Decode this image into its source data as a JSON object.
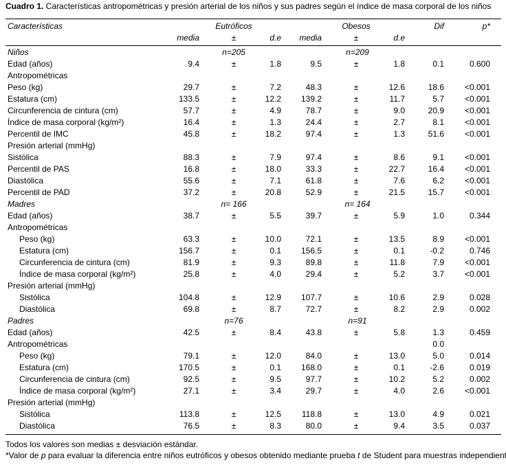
{
  "caption": {
    "label": "Cuadro 1.",
    "text": " Características antropométricas y presión arterial de los niños y sus padres según el índice de masa corporal de los niños"
  },
  "headers": {
    "caracteristicas": "Características",
    "eutroficos": "Eutróficos",
    "obesos": "Obesos",
    "dif": "Dif",
    "p": "p*",
    "media": "media",
    "pm": "±",
    "de": "d.e"
  },
  "rows": [
    {
      "label": "Niños",
      "kind": "group",
      "n1": "n=205",
      "n2": "n=209"
    },
    {
      "label": "Edad (años)",
      "m1": "9.4",
      "pm": "±",
      "sd1": "1.8",
      "m2": "9.5",
      "sd2": "1.8",
      "dif": "0.1",
      "p": "0.600"
    },
    {
      "label": "Antropométricas",
      "kind": "section"
    },
    {
      "label": "Peso (kg)",
      "m1": "29.7",
      "pm": "±",
      "sd1": "7.2",
      "m2": "48.3",
      "sd2": "12.6",
      "dif": "18.6",
      "p": "<0.001"
    },
    {
      "label": "Estatura (cm)",
      "m1": "133.5",
      "pm": "±",
      "sd1": "12.2",
      "m2": "139.2",
      "sd2": "11.7",
      "dif": "5.7",
      "p": "<0.001"
    },
    {
      "label": "Circunferencia de cintura (cm)",
      "m1": "57.7",
      "pm": "±",
      "sd1": "4.9",
      "m2": "78.7",
      "sd2": "9.0",
      "dif": "20.9",
      "p": "<0.001"
    },
    {
      "label": "Índice de masa corporal (kg/m²)",
      "m1": "16.4",
      "pm": "±",
      "sd1": "1.3",
      "m2": "24.4",
      "sd2": "2.7",
      "dif": "8.1",
      "p": "<0.001"
    },
    {
      "label": "Percentil de IMC",
      "m1": "45.8",
      "pm": "±",
      "sd1": "18.2",
      "m2": "97.4",
      "sd2": "1.3",
      "dif": "51.6",
      "p": "<0.001"
    },
    {
      "label": "Presión arterial (mmHg)",
      "kind": "section"
    },
    {
      "label": "Sistólica",
      "m1": "88.3",
      "pm": "±",
      "sd1": "7.9",
      "m2": "97.4",
      "sd2": "8.6",
      "dif": "9.1",
      "p": "<0.001"
    },
    {
      "label": "Percentil de PAS",
      "m1": "16.8",
      "pm": "±",
      "sd1": "18.0",
      "m2": "33.3",
      "sd2": "22.7",
      "dif": "16.4",
      "p": "<0.001"
    },
    {
      "label": "Diastólica",
      "m1": "55.6",
      "pm": "±",
      "sd1": "7.1",
      "m2": "61.8",
      "sd2": "7.6",
      "dif": "6.2",
      "p": "<0.001"
    },
    {
      "label": "Percentil de PAD",
      "m1": "37.2",
      "pm": "±",
      "sd1": "20.8",
      "m2": "52.9",
      "sd2": "21.5",
      "dif": "15.7",
      "p": "<0.001"
    },
    {
      "label": "Madres",
      "kind": "group",
      "n1": "n= 166",
      "n2": "n= 164"
    },
    {
      "label": "Edad (años)",
      "m1": "38.7",
      "pm": "±",
      "sd1": "5.5",
      "m2": "39.7",
      "sd2": "5.9",
      "dif": "1.0",
      "p": "0.344"
    },
    {
      "label": "Antropométricas",
      "kind": "section"
    },
    {
      "label": "Peso (kg)",
      "indent": true,
      "m1": "63.3",
      "pm": "±",
      "sd1": "10.0",
      "m2": "72.1",
      "sd2": "13.5",
      "dif": "8.9",
      "p": "<0.001"
    },
    {
      "label": "Estatura (cm)",
      "indent": true,
      "m1": "156.7",
      "pm": "±",
      "sd1": "0.1",
      "m2": "156.5",
      "sd2": "0.1",
      "dif": "-0.2",
      "p": "0.746"
    },
    {
      "label": "Circunferencia de cintura (cm)",
      "indent": true,
      "m1": "81.9",
      "pm": "±",
      "sd1": "9.3",
      "m2": "89.8",
      "sd2": "11.8",
      "dif": "7.9",
      "p": "<0.001"
    },
    {
      "label": "Índice de masa corporal (kg/m²)",
      "indent": true,
      "m1": "25.8",
      "pm": "±",
      "sd1": "4.0",
      "m2": "29.4",
      "sd2": "5.2",
      "dif": "3.7",
      "p": "<0.001"
    },
    {
      "label": "Presión arterial (mmHg)",
      "kind": "section"
    },
    {
      "label": "Sistólica",
      "indent": true,
      "m1": "104.8",
      "pm": "±",
      "sd1": "12.9",
      "m2": "107.7",
      "sd2": "10.6",
      "dif": "2.9",
      "p": "0.028"
    },
    {
      "label": "Diastólica",
      "indent": true,
      "m1": "69.8",
      "pm": "±",
      "sd1": "8.7",
      "m2": "72.7",
      "sd2": "8.2",
      "dif": "2.9",
      "p": "0.002"
    },
    {
      "label": "Padres",
      "kind": "group",
      "n1": "n=76",
      "n2": "n=91"
    },
    {
      "label": "Edad (años)",
      "m1": "42.5",
      "pm": "±",
      "sd1": "8.4",
      "m2": "43.8",
      "sd2": "5.8",
      "dif": "1.3",
      "p": "0.459"
    },
    {
      "label": "Antropométricas",
      "kind": "section",
      "dif": "0.0"
    },
    {
      "label": "Peso (kg)",
      "indent": true,
      "m1": "79.1",
      "pm": "±",
      "sd1": "12.0",
      "m2": "84.0",
      "sd2": "13.0",
      "dif": "5.0",
      "p": "0.014"
    },
    {
      "label": "Estatura (cm)",
      "indent": true,
      "m1": "170.5",
      "pm": "±",
      "sd1": "0.1",
      "m2": "168.0",
      "sd2": "0.1",
      "dif": "-2.6",
      "p": "0.019"
    },
    {
      "label": "Circunferencia de cintura (cm)",
      "indent": true,
      "m1": "92.5",
      "pm": "±",
      "sd1": "9.5",
      "m2": "97.7",
      "sd2": "10.2",
      "dif": "5.2",
      "p": "0.002"
    },
    {
      "label": "Índice de masa corporal (kg/m²)",
      "indent": true,
      "m1": "27.1",
      "pm": "±",
      "sd1": "3.4",
      "m2": "29.7",
      "sd2": "4.0",
      "dif": "2.6",
      "p": "<0.001"
    },
    {
      "label": "Presión arterial (mmHg)",
      "kind": "section"
    },
    {
      "label": "Sistólica",
      "indent": true,
      "m1": "113.8",
      "pm": "±",
      "sd1": "12.5",
      "m2": "118.8",
      "sd2": "13.0",
      "dif": "4.9",
      "p": "0.021"
    },
    {
      "label": "Diastólica",
      "indent": true,
      "m1": "76.5",
      "pm": "±",
      "sd1": "8.3",
      "m2": "80.0",
      "sd2": "9.4",
      "dif": "3.5",
      "p": "0.037"
    }
  ],
  "footer": {
    "line1": "Todos los valores son medias ± desviación estándar.",
    "line2_a": "*Valor de ",
    "line2_p": "p",
    "line2_b": " para evaluar la diferencia entre niños eutróficos y obesos obtenido mediante prueba ",
    "line2_t": "t",
    "line2_c": " de Student para muestras independientes."
  }
}
